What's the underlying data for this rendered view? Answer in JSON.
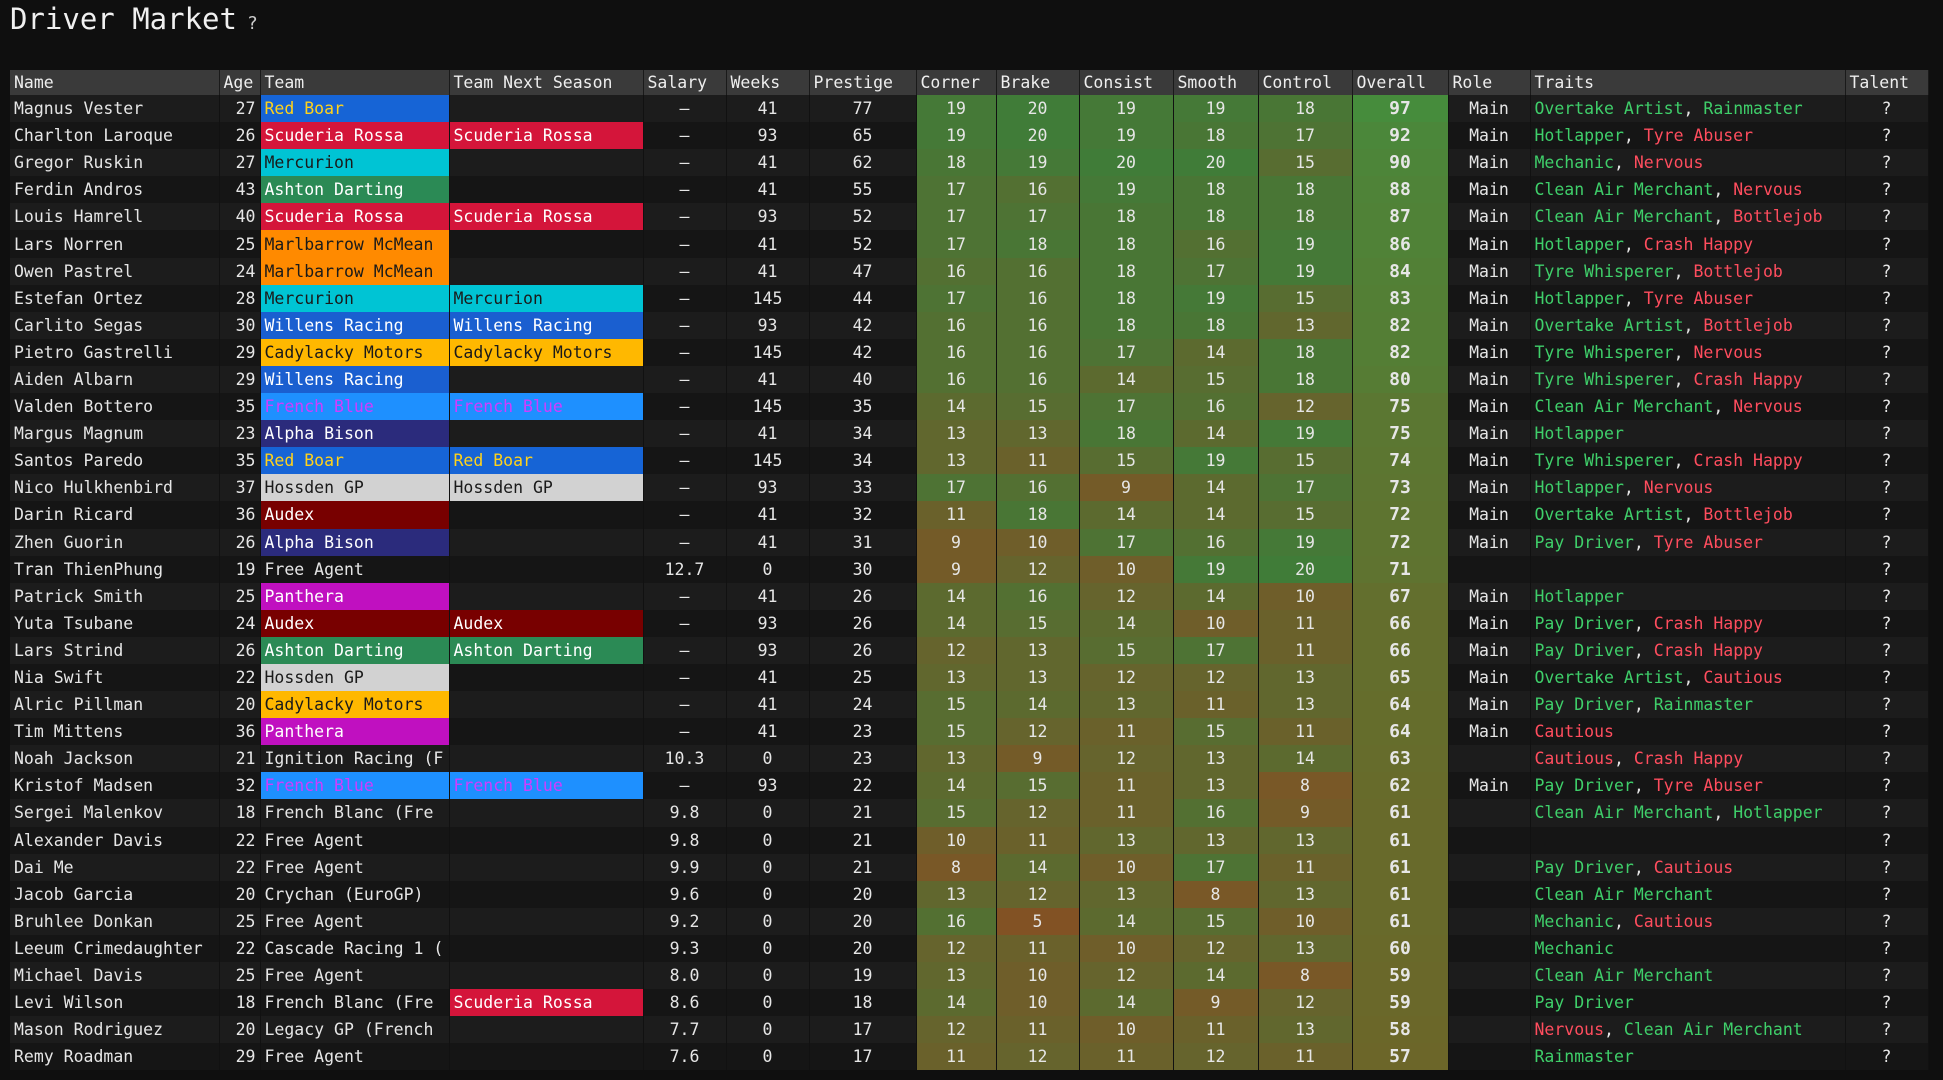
{
  "header": {
    "title": "Driver Market",
    "help": "?"
  },
  "table": {
    "columns": [
      "Name",
      "Age",
      "Team",
      "Team Next Season",
      "Salary",
      "Weeks",
      "Prestige",
      "Corner",
      "Brake",
      "Consist",
      "Smooth",
      "Control",
      "Overall",
      "Role",
      "Traits",
      "Talent"
    ],
    "trait_separator": ", ",
    "trait_colors": {
      "good": "#3fcf6a",
      "bad": "#ff4d5e"
    },
    "team_colors": {
      "Red Boar": {
        "bg": "#1664d6",
        "fg": "#ffd21a"
      },
      "Scuderia Rossa": {
        "bg": "#d4153a",
        "fg": "#ffffff"
      },
      "Mercurion": {
        "bg": "#00c4d4",
        "fg": "#1a1a1a"
      },
      "Ashton Darting": {
        "bg": "#2b8a55",
        "fg": "#ffffff"
      },
      "Marlbarrow McMean": {
        "bg": "#ff8a00",
        "fg": "#1a1a1a"
      },
      "Willens Racing": {
        "bg": "#1a5fd0",
        "fg": "#ffffff"
      },
      "Cadylacky Motors": {
        "bg": "#ffb800",
        "fg": "#1a1a1a"
      },
      "French Blue": {
        "bg": "#1e90ff",
        "fg": "#d03cff"
      },
      "Alpha Bison": {
        "bg": "#2b2b7c",
        "fg": "#ffffff"
      },
      "Hossden GP": {
        "bg": "#d2d2d2",
        "fg": "#1a1a1a"
      },
      "Audex": {
        "bg": "#780000",
        "fg": "#ffffff"
      },
      "Panthera": {
        "bg": "#c010c0",
        "fg": "#ffffff"
      }
    },
    "rows": [
      [
        "Magnus Vester",
        27,
        "Red Boar",
        null,
        "–",
        41,
        77,
        19,
        20,
        19,
        19,
        18,
        97,
        "Main",
        [
          [
            "Overtake Artist",
            "good"
          ],
          [
            "Rainmaster",
            "good"
          ]
        ],
        "?"
      ],
      [
        "Charlton Laroque",
        26,
        "Scuderia Rossa",
        "Scuderia Rossa",
        "–",
        93,
        65,
        19,
        20,
        19,
        18,
        17,
        92,
        "Main",
        [
          [
            "Hotlapper",
            "good"
          ],
          [
            "Tyre Abuser",
            "bad"
          ]
        ],
        "?"
      ],
      [
        "Gregor Ruskin",
        27,
        "Mercurion",
        null,
        "–",
        41,
        62,
        18,
        19,
        20,
        20,
        15,
        90,
        "Main",
        [
          [
            "Mechanic",
            "good"
          ],
          [
            "Nervous",
            "bad"
          ]
        ],
        "?"
      ],
      [
        "Ferdin Andros",
        43,
        "Ashton Darting",
        null,
        "–",
        41,
        55,
        17,
        16,
        19,
        18,
        18,
        88,
        "Main",
        [
          [
            "Clean Air Merchant",
            "good"
          ],
          [
            "Nervous",
            "bad"
          ]
        ],
        "?"
      ],
      [
        "Louis Hamrell",
        40,
        "Scuderia Rossa",
        "Scuderia Rossa",
        "–",
        93,
        52,
        17,
        17,
        18,
        18,
        18,
        87,
        "Main",
        [
          [
            "Clean Air Merchant",
            "good"
          ],
          [
            "Bottlejob",
            "bad"
          ]
        ],
        "?"
      ],
      [
        "Lars Norren",
        25,
        "Marlbarrow McMean",
        null,
        "–",
        41,
        52,
        17,
        18,
        18,
        16,
        19,
        86,
        "Main",
        [
          [
            "Hotlapper",
            "good"
          ],
          [
            "Crash Happy",
            "bad"
          ]
        ],
        "?"
      ],
      [
        "Owen Pastrel",
        24,
        "Marlbarrow McMean",
        null,
        "–",
        41,
        47,
        16,
        16,
        18,
        17,
        19,
        84,
        "Main",
        [
          [
            "Tyre Whisperer",
            "good"
          ],
          [
            "Bottlejob",
            "bad"
          ]
        ],
        "?"
      ],
      [
        "Estefan Ortez",
        28,
        "Mercurion",
        "Mercurion",
        "–",
        145,
        44,
        17,
        16,
        18,
        19,
        15,
        83,
        "Main",
        [
          [
            "Hotlapper",
            "good"
          ],
          [
            "Tyre Abuser",
            "bad"
          ]
        ],
        "?"
      ],
      [
        "Carlito Segas",
        30,
        "Willens Racing",
        "Willens Racing",
        "–",
        93,
        42,
        16,
        16,
        18,
        18,
        13,
        82,
        "Main",
        [
          [
            "Overtake Artist",
            "good"
          ],
          [
            "Bottlejob",
            "bad"
          ]
        ],
        "?"
      ],
      [
        "Pietro Gastrelli",
        29,
        "Cadylacky Motors",
        "Cadylacky Motors",
        "–",
        145,
        42,
        16,
        16,
        17,
        14,
        18,
        82,
        "Main",
        [
          [
            "Tyre Whisperer",
            "good"
          ],
          [
            "Nervous",
            "bad"
          ]
        ],
        "?"
      ],
      [
        "Aiden Albarn",
        29,
        "Willens Racing",
        null,
        "–",
        41,
        40,
        16,
        16,
        14,
        15,
        18,
        80,
        "Main",
        [
          [
            "Tyre Whisperer",
            "good"
          ],
          [
            "Crash Happy",
            "bad"
          ]
        ],
        "?"
      ],
      [
        "Valden Bottero",
        35,
        "French Blue",
        "French Blue",
        "–",
        145,
        35,
        14,
        15,
        17,
        16,
        12,
        75,
        "Main",
        [
          [
            "Clean Air Merchant",
            "good"
          ],
          [
            "Nervous",
            "bad"
          ]
        ],
        "?"
      ],
      [
        "Margus Magnum",
        23,
        "Alpha Bison",
        null,
        "–",
        41,
        34,
        13,
        13,
        18,
        14,
        19,
        75,
        "Main",
        [
          [
            "Hotlapper",
            "good"
          ]
        ],
        "?"
      ],
      [
        "Santos Paredo",
        35,
        "Red Boar",
        "Red Boar",
        "–",
        145,
        34,
        13,
        11,
        15,
        19,
        15,
        74,
        "Main",
        [
          [
            "Tyre Whisperer",
            "good"
          ],
          [
            "Crash Happy",
            "bad"
          ]
        ],
        "?"
      ],
      [
        "Nico Hulkhenbird",
        37,
        "Hossden GP",
        "Hossden GP",
        "–",
        93,
        33,
        17,
        16,
        9,
        14,
        17,
        73,
        "Main",
        [
          [
            "Hotlapper",
            "good"
          ],
          [
            "Nervous",
            "bad"
          ]
        ],
        "?"
      ],
      [
        "Darin Ricard",
        36,
        "Audex",
        null,
        "–",
        41,
        32,
        11,
        18,
        14,
        14,
        15,
        72,
        "Main",
        [
          [
            "Overtake Artist",
            "good"
          ],
          [
            "Bottlejob",
            "bad"
          ]
        ],
        "?"
      ],
      [
        "Zhen Guorin",
        26,
        "Alpha Bison",
        null,
        "–",
        41,
        31,
        9,
        10,
        17,
        16,
        19,
        72,
        "Main",
        [
          [
            "Pay Driver",
            "good"
          ],
          [
            "Tyre Abuser",
            "bad"
          ]
        ],
        "?"
      ],
      [
        "Tran ThienPhung",
        19,
        "Free Agent",
        null,
        "12.7",
        0,
        30,
        9,
        12,
        10,
        19,
        20,
        71,
        null,
        [],
        "?"
      ],
      [
        "Patrick Smith",
        25,
        "Panthera",
        null,
        "–",
        41,
        26,
        14,
        16,
        12,
        14,
        10,
        67,
        "Main",
        [
          [
            "Hotlapper",
            "good"
          ]
        ],
        "?"
      ],
      [
        "Yuta Tsubane",
        24,
        "Audex",
        "Audex",
        "–",
        93,
        26,
        14,
        15,
        14,
        10,
        11,
        66,
        "Main",
        [
          [
            "Pay Driver",
            "good"
          ],
          [
            "Crash Happy",
            "bad"
          ]
        ],
        "?"
      ],
      [
        "Lars Strind",
        26,
        "Ashton Darting",
        "Ashton Darting",
        "–",
        93,
        26,
        12,
        13,
        15,
        17,
        11,
        66,
        "Main",
        [
          [
            "Pay Driver",
            "good"
          ],
          [
            "Crash Happy",
            "bad"
          ]
        ],
        "?"
      ],
      [
        "Nia Swift",
        22,
        "Hossden GP",
        null,
        "–",
        41,
        25,
        13,
        13,
        12,
        12,
        13,
        65,
        "Main",
        [
          [
            "Overtake Artist",
            "good"
          ],
          [
            "Cautious",
            "bad"
          ]
        ],
        "?"
      ],
      [
        "Alric Pillman",
        20,
        "Cadylacky Motors",
        null,
        "–",
        41,
        24,
        15,
        14,
        13,
        11,
        13,
        64,
        "Main",
        [
          [
            "Pay Driver",
            "good"
          ],
          [
            "Rainmaster",
            "good"
          ]
        ],
        "?"
      ],
      [
        "Tim Mittens",
        36,
        "Panthera",
        null,
        "–",
        41,
        23,
        15,
        12,
        11,
        15,
        11,
        64,
        "Main",
        [
          [
            "Cautious",
            "bad"
          ]
        ],
        "?"
      ],
      [
        "Noah Jackson",
        21,
        "Ignition Racing (F",
        null,
        "10.3",
        0,
        23,
        13,
        9,
        12,
        13,
        14,
        63,
        null,
        [
          [
            "Cautious",
            "bad"
          ],
          [
            "Crash Happy",
            "bad"
          ]
        ],
        "?"
      ],
      [
        "Kristof Madsen",
        32,
        "French Blue",
        "French Blue",
        "–",
        93,
        22,
        14,
        15,
        11,
        13,
        8,
        62,
        "Main",
        [
          [
            "Pay Driver",
            "good"
          ],
          [
            "Tyre Abuser",
            "bad"
          ]
        ],
        "?"
      ],
      [
        "Sergei Malenkov",
        18,
        "French Blanc (Fre",
        null,
        "9.8",
        0,
        21,
        15,
        12,
        11,
        16,
        9,
        61,
        null,
        [
          [
            "Clean Air Merchant",
            "good"
          ],
          [
            "Hotlapper",
            "good"
          ]
        ],
        "?"
      ],
      [
        "Alexander Davis",
        22,
        "Free Agent",
        null,
        "9.8",
        0,
        21,
        10,
        11,
        13,
        13,
        13,
        61,
        null,
        [],
        "?"
      ],
      [
        "Dai Me",
        22,
        "Free Agent",
        null,
        "9.9",
        0,
        21,
        8,
        14,
        10,
        17,
        11,
        61,
        null,
        [
          [
            "Pay Driver",
            "good"
          ],
          [
            "Cautious",
            "bad"
          ]
        ],
        "?"
      ],
      [
        "Jacob Garcia",
        20,
        "Crychan (EuroGP)",
        null,
        "9.6",
        0,
        20,
        13,
        12,
        13,
        8,
        13,
        61,
        null,
        [
          [
            "Clean Air Merchant",
            "good"
          ]
        ],
        "?"
      ],
      [
        "Bruhlee Donkan",
        25,
        "Free Agent",
        null,
        "9.2",
        0,
        20,
        16,
        5,
        14,
        15,
        10,
        61,
        null,
        [
          [
            "Mechanic",
            "good"
          ],
          [
            "Cautious",
            "bad"
          ]
        ],
        "?"
      ],
      [
        "Leeum Crimedaughter",
        22,
        "Cascade Racing 1 (",
        null,
        "9.3",
        0,
        20,
        12,
        11,
        10,
        12,
        13,
        60,
        null,
        [
          [
            "Mechanic",
            "good"
          ]
        ],
        "?"
      ],
      [
        "Michael Davis",
        25,
        "Free Agent",
        null,
        "8.0",
        0,
        19,
        13,
        10,
        12,
        14,
        8,
        59,
        null,
        [
          [
            "Clean Air Merchant",
            "good"
          ]
        ],
        "?"
      ],
      [
        "Levi Wilson",
        18,
        "French Blanc (Fre",
        "Scuderia Rossa",
        "8.6",
        0,
        18,
        14,
        10,
        14,
        9,
        12,
        59,
        null,
        [
          [
            "Pay Driver",
            "good"
          ]
        ],
        "?"
      ],
      [
        "Mason Rodriguez",
        20,
        "Legacy GP (French",
        null,
        "7.7",
        0,
        17,
        12,
        11,
        10,
        11,
        13,
        58,
        null,
        [
          [
            "Nervous",
            "bad"
          ],
          [
            "Clean Air Merchant",
            "good"
          ]
        ],
        "?"
      ],
      [
        "Remy Roadman",
        29,
        "Free Agent",
        null,
        "7.6",
        0,
        17,
        11,
        12,
        11,
        12,
        11,
        57,
        null,
        [
          [
            "Rainmaster",
            "good"
          ]
        ],
        "?"
      ]
    ]
  }
}
